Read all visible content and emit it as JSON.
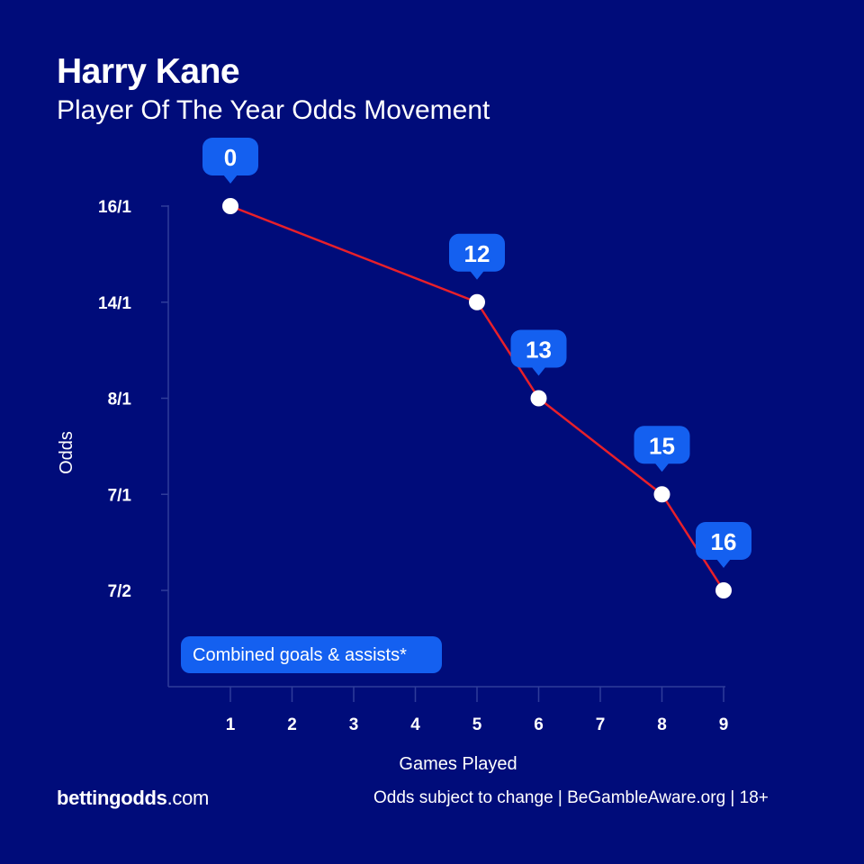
{
  "header": {
    "title": "Harry Kane",
    "subtitle": "Player Of The Year Odds Movement"
  },
  "chart_data": {
    "type": "line",
    "xlabel": "Games Played",
    "ylabel": "Odds",
    "x_ticks": [
      "1",
      "2",
      "3",
      "4",
      "5",
      "6",
      "7",
      "8",
      "9"
    ],
    "y_ticks": [
      "16/1",
      "14/1",
      "8/1",
      "7/1",
      "7/2"
    ],
    "series": [
      {
        "x": [
          1,
          5,
          6,
          8,
          9
        ],
        "y": [
          "16/1",
          "14/1",
          "8/1",
          "7/1",
          "7/2"
        ],
        "labels": [
          "0",
          "12",
          "13",
          "15",
          "16"
        ]
      }
    ],
    "annotation": "Combined goals & assists*",
    "colors": {
      "background": "#000c7a",
      "line": "#e8202a",
      "callout": "#1460f0",
      "axis": "#2f3c9a",
      "marker": "#ffffff"
    }
  },
  "footer": {
    "brand_bold": "bettingodds",
    "brand_light": ".com",
    "disclaimer": "Odds subject to change | BeGambleAware.org | 18+"
  }
}
